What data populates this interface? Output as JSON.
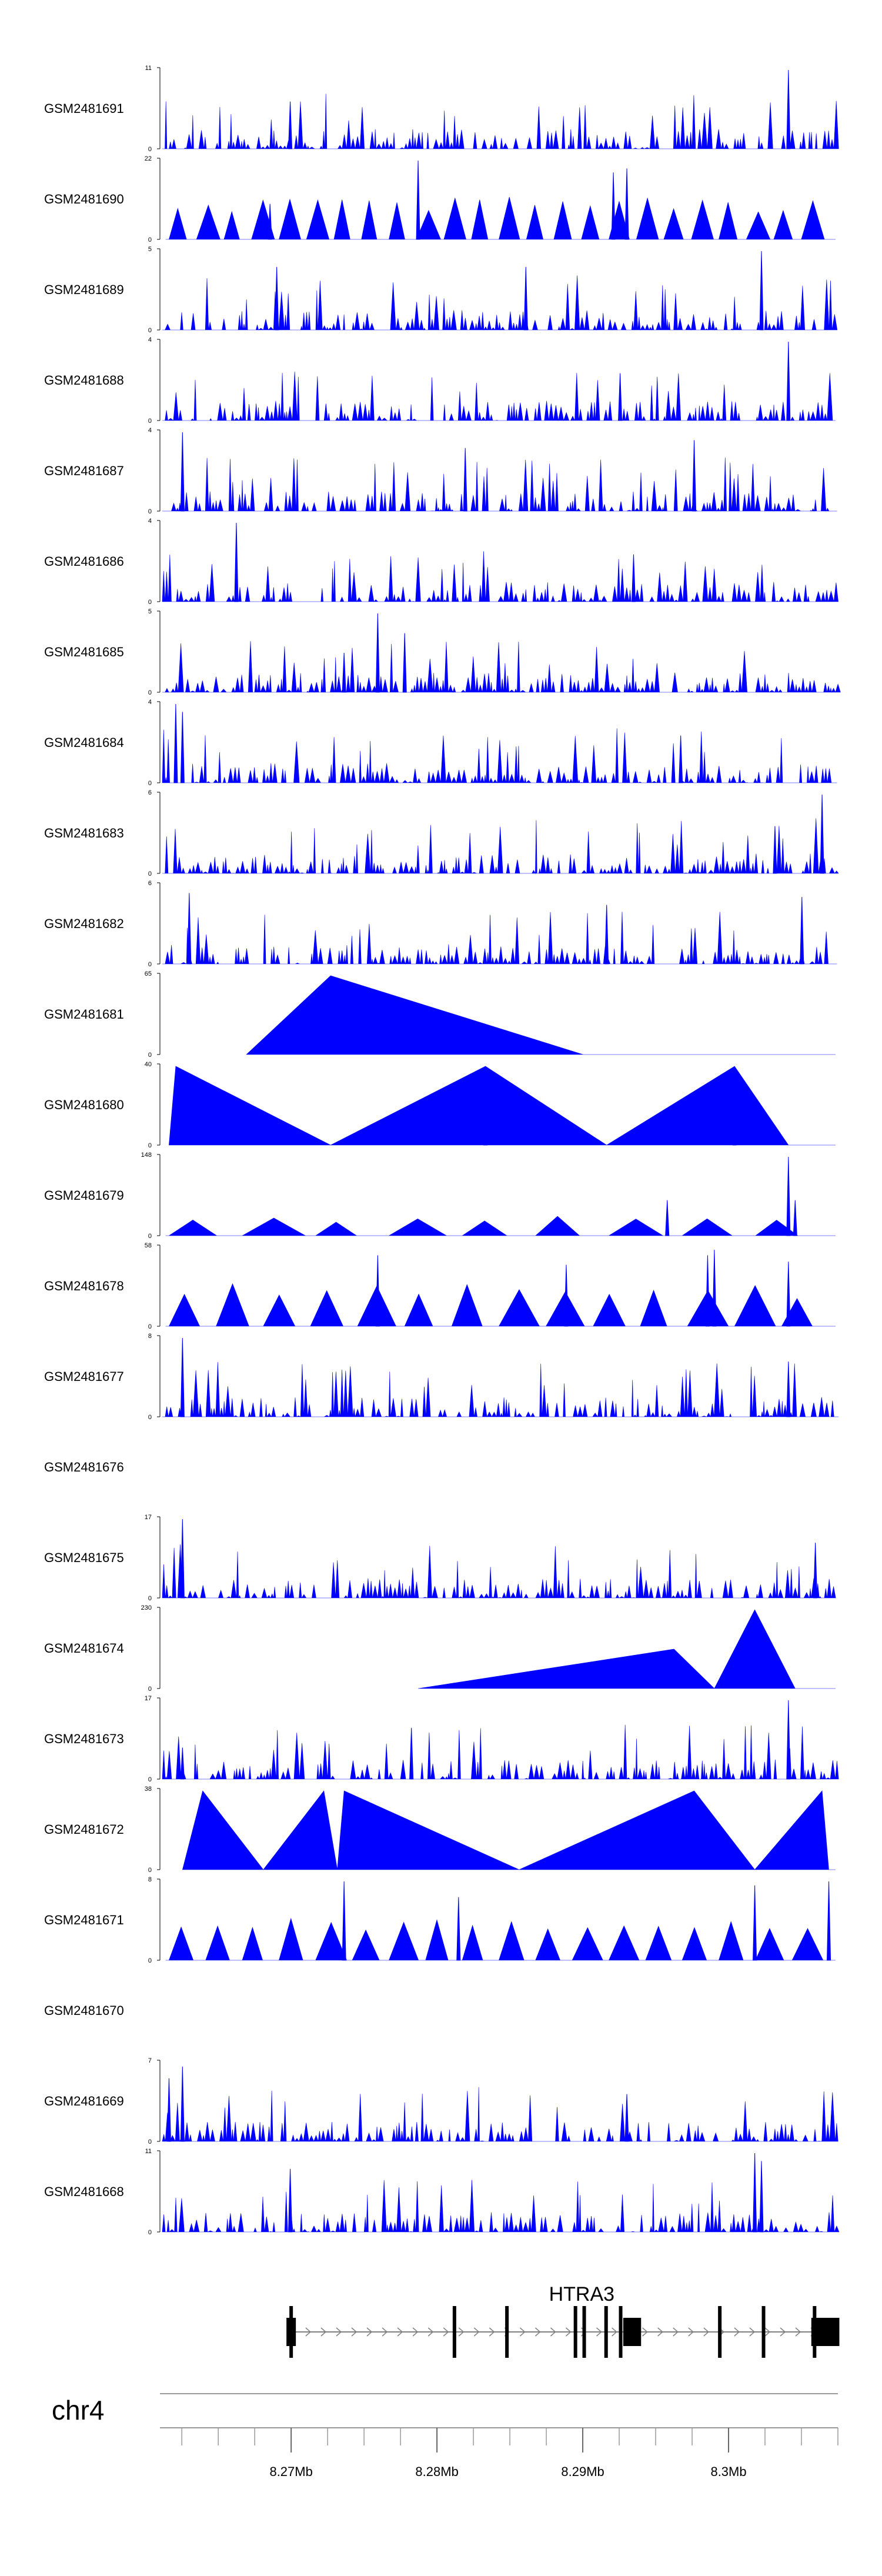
{
  "chart_data": {
    "type": "area",
    "title": "",
    "color": "#0000ff",
    "series": [
      {
        "name": "GSM2481691",
        "ymax": 11,
        "pattern": "dense",
        "seed": 11,
        "spikes": [
          [
            0.93,
            1.0
          ],
          [
            0.19,
            0.6
          ]
        ]
      },
      {
        "name": "GSM2481690",
        "ymax": 22,
        "pattern": "tri",
        "seed": 22,
        "tris": 24,
        "triLevel": 0.45,
        "spikes": [
          [
            0.38,
            1.0
          ],
          [
            0.69,
            0.9
          ],
          [
            0.67,
            0.85
          ],
          [
            0.16,
            0.45
          ]
        ]
      },
      {
        "name": "GSM2481689",
        "ymax": 5,
        "pattern": "dense",
        "seed": 33,
        "spikes": [
          [
            0.89,
            1.0
          ],
          [
            0.17,
            0.8
          ],
          [
            0.54,
            0.8
          ]
        ]
      },
      {
        "name": "GSM2481688",
        "ymax": 4,
        "pattern": "dense",
        "seed": 44,
        "spikes": [
          [
            0.93,
            1.0
          ],
          [
            0.68,
            0.6
          ]
        ]
      },
      {
        "name": "GSM2481687",
        "ymax": 4,
        "pattern": "dense",
        "seed": 55,
        "spikes": [
          [
            0.03,
            1.0
          ],
          [
            0.79,
            0.9
          ],
          [
            0.45,
            0.8
          ]
        ]
      },
      {
        "name": "GSM2481686",
        "ymax": 4,
        "pattern": "dense",
        "seed": 66,
        "spikes": [
          [
            0.11,
            1.0
          ],
          [
            0.7,
            0.6
          ]
        ]
      },
      {
        "name": "GSM2481685",
        "ymax": 5,
        "pattern": "dense",
        "seed": 77,
        "spikes": [
          [
            0.32,
            1.0
          ],
          [
            0.36,
            0.75
          ],
          [
            0.27,
            0.5
          ]
        ]
      },
      {
        "name": "GSM2481684",
        "ymax": 4,
        "pattern": "dense",
        "seed": 88,
        "spikes": [
          [
            0.02,
            1.0
          ],
          [
            0.03,
            0.9
          ],
          [
            0.77,
            0.6
          ]
        ]
      },
      {
        "name": "GSM2481683",
        "ymax": 6,
        "pattern": "dense",
        "seed": 99,
        "spikes": [
          [
            0.98,
            1.0
          ],
          [
            0.91,
            0.6
          ]
        ]
      },
      {
        "name": "GSM2481682",
        "ymax": 6,
        "pattern": "dense",
        "seed": 111,
        "spikes": [
          [
            0.04,
            0.9
          ],
          [
            0.95,
            0.85
          ],
          [
            0.66,
            0.75
          ]
        ]
      },
      {
        "name": "GSM2481681",
        "ymax": 65,
        "pattern": "shape",
        "pts": [
          [
            0.125,
            0
          ],
          [
            0.25,
            1.0
          ],
          [
            0.625,
            0
          ]
        ]
      },
      {
        "name": "GSM2481680",
        "ymax": 40,
        "pattern": "shape",
        "pts": [
          [
            0.01,
            0
          ],
          [
            0.02,
            1.0
          ],
          [
            0.25,
            0
          ],
          [
            0.48,
            1.0
          ],
          [
            0.66,
            0
          ],
          [
            0.85,
            1.0
          ],
          [
            0.93,
            0
          ]
        ],
        "spikes": [
          [
            0.48,
            1.0
          ],
          [
            0.85,
            1.0
          ]
        ]
      },
      {
        "name": "GSM2481679",
        "ymax": 148,
        "pattern": "tri",
        "seed": 133,
        "tris": 9,
        "triLevel": 0.22,
        "spikes": [
          [
            0.93,
            1.0
          ],
          [
            0.94,
            0.45
          ],
          [
            0.75,
            0.45
          ]
        ]
      },
      {
        "name": "GSM2481678",
        "ymax": 58,
        "pattern": "tri",
        "seed": 144,
        "tris": 14,
        "triLevel": 0.45,
        "spikes": [
          [
            0.82,
            0.97
          ],
          [
            0.81,
            0.9
          ],
          [
            0.6,
            0.78
          ],
          [
            0.32,
            0.9
          ],
          [
            0.93,
            0.82
          ]
        ]
      },
      {
        "name": "GSM2481677",
        "ymax": 8,
        "pattern": "dense",
        "seed": 155,
        "spikes": [
          [
            0.03,
            1.0
          ],
          [
            0.93,
            0.7
          ]
        ]
      },
      {
        "name": "GSM2481676",
        "ymax": null,
        "pattern": "empty"
      },
      {
        "name": "GSM2481675",
        "ymax": 17,
        "pattern": "dense",
        "seed": 177,
        "spikes": [
          [
            0.03,
            1.0
          ],
          [
            0.97,
            0.7
          ]
        ]
      },
      {
        "name": "GSM2481674",
        "ymax": 230,
        "pattern": "shape",
        "pts": [
          [
            0.38,
            0
          ],
          [
            0.76,
            0.5
          ],
          [
            0.82,
            0
          ],
          [
            0.88,
            1.0
          ],
          [
            0.94,
            0
          ]
        ]
      },
      {
        "name": "GSM2481673",
        "ymax": 17,
        "pattern": "dense",
        "seed": 199,
        "spikes": [
          [
            0.93,
            1.0
          ],
          [
            0.37,
            0.65
          ],
          [
            0.03,
            0.4
          ]
        ]
      },
      {
        "name": "GSM2481672",
        "ymax": 38,
        "pattern": "shape",
        "pts": [
          [
            0.03,
            0
          ],
          [
            0.06,
            1.0
          ],
          [
            0.15,
            0
          ],
          [
            0.24,
            1.0
          ],
          [
            0.26,
            0
          ],
          [
            0.27,
            1.0
          ],
          [
            0.53,
            0
          ],
          [
            0.79,
            1.0
          ],
          [
            0.88,
            0
          ],
          [
            0.98,
            1.0
          ],
          [
            0.99,
            0
          ]
        ]
      },
      {
        "name": "GSM2481671",
        "ymax": 8,
        "pattern": "tri",
        "seed": 211,
        "tris": 18,
        "triLevel": 0.45,
        "spikes": [
          [
            0.27,
            1.0
          ],
          [
            0.88,
            0.95
          ],
          [
            0.99,
            1.0
          ],
          [
            0.44,
            0.8
          ]
        ]
      },
      {
        "name": "GSM2481670",
        "ymax": null,
        "pattern": "empty"
      },
      {
        "name": "GSM2481669",
        "ymax": 7,
        "pattern": "dense",
        "seed": 233,
        "spikes": [
          [
            0.03,
            0.95
          ],
          [
            0.01,
            0.8
          ],
          [
            0.69,
            0.6
          ]
        ]
      },
      {
        "name": "GSM2481668",
        "ymax": 11,
        "pattern": "dense",
        "seed": 244,
        "spikes": [
          [
            0.88,
            1.0
          ],
          [
            0.89,
            0.9
          ],
          [
            0.19,
            0.8
          ]
        ]
      }
    ],
    "gene": {
      "name": "HTRA3",
      "start": 8270000,
      "end": 8307600,
      "exons": [
        8270000,
        8281200,
        8284800,
        8289500,
        8290100,
        8291600,
        8292600,
        8299400,
        8302400,
        8305900
      ],
      "thick_exons": [
        [
          8270000,
          8270300
        ],
        [
          8293100,
          8294000
        ],
        [
          8306000,
          8307600
        ]
      ]
    },
    "xaxis": {
      "chromosome": "chr4",
      "start": 8261000,
      "end": 8307500,
      "tick_labels": [
        {
          "v": 8270000,
          "label": "8.27Mb"
        },
        {
          "v": 8280000,
          "label": "8.28Mb"
        },
        {
          "v": 8290000,
          "label": "8.29Mb"
        },
        {
          "v": 8300000,
          "label": "8.3Mb"
        }
      ],
      "minor_step": 2500,
      "zero_label": "0"
    }
  }
}
